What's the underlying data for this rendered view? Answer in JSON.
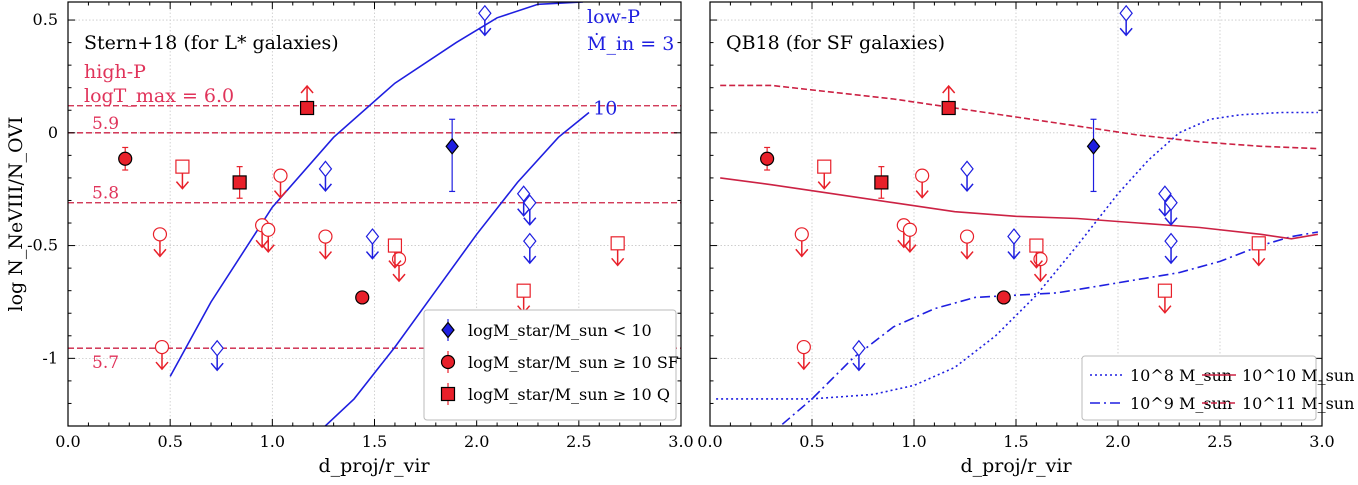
{
  "chart_data": [
    {
      "type": "scatter",
      "title": "Stern+18 (for L* galaxies)",
      "xlabel": "d_proj/r_vir",
      "ylabel": "log N_NeVIII/N_OVI",
      "xlim": [
        0.0,
        3.0
      ],
      "ylim": [
        -1.3,
        0.58
      ],
      "xticks": [
        "0.0",
        "0.5",
        "1.0",
        "1.5",
        "2.0",
        "2.5",
        "3.0"
      ],
      "yticks": [
        "0.5",
        "0",
        "-0.5",
        "-1"
      ],
      "grid": true,
      "legend_position": "lower-right",
      "annotations": {
        "high_p_label": "high-P",
        "tmax_label": "logT_max = 6.0",
        "low_p_label": "low-P",
        "min_label": "Ṁ_in = 3",
        "hlines": [
          {
            "y": 0.12,
            "label": ""
          },
          {
            "y": 0.0,
            "label": "5.9"
          },
          {
            "y": -0.31,
            "label": "5.8"
          },
          {
            "y": -0.955,
            "label": "5.7"
          }
        ],
        "curve10_label": "10"
      },
      "legend": [
        {
          "marker": "diamond",
          "label": "logM_star/M_sun < 10"
        },
        {
          "marker": "circle",
          "label": "logM_star/M_sun ≥ 10 SF"
        },
        {
          "marker": "square",
          "label": "logM_star/M_sun ≥ 10 Q"
        }
      ],
      "model_curves": [
        {
          "name": "Mdot_in = 3",
          "points": [
            [
              0.5,
              -1.08
            ],
            [
              0.7,
              -0.75
            ],
            [
              1.0,
              -0.33
            ],
            [
              1.3,
              -0.02
            ],
            [
              1.6,
              0.22
            ],
            [
              1.9,
              0.4
            ],
            [
              2.1,
              0.51
            ],
            [
              2.3,
              0.57
            ],
            [
              2.52,
              0.58
            ]
          ]
        },
        {
          "name": "Mdot_in = 10",
          "points": [
            [
              1.2,
              -1.35
            ],
            [
              1.4,
              -1.18
            ],
            [
              1.6,
              -0.95
            ],
            [
              1.8,
              -0.7
            ],
            [
              2.0,
              -0.45
            ],
            [
              2.2,
              -0.22
            ],
            [
              2.4,
              -0.02
            ],
            [
              2.55,
              0.09
            ]
          ]
        }
      ]
    },
    {
      "type": "scatter",
      "title": "QB18 (for SF galaxies)",
      "xlabel": "d_proj/r_vir",
      "xlim": [
        0.0,
        3.0
      ],
      "ylim": [
        -1.3,
        0.58
      ],
      "xticks": [
        "0.0",
        "0.5",
        "1.0",
        "1.5",
        "2.0",
        "2.5",
        "3.0"
      ],
      "grid": true,
      "legend_position": "lower-right",
      "legend": [
        {
          "style": "dotted",
          "color": "#1f1fe0",
          "label": "10^8 M_sun"
        },
        {
          "style": "dashdot",
          "color": "#1f1fe0",
          "label": "10^9 M_sun"
        },
        {
          "style": "solid",
          "color": "#cc2244",
          "label": "10^10 M_sun"
        },
        {
          "style": "dashed",
          "color": "#cc2244",
          "label": "10^11 M_sun"
        }
      ],
      "model_curves": [
        {
          "name": "10^8 M_sun",
          "points": [
            [
              0.03,
              -1.18
            ],
            [
              0.5,
              -1.18
            ],
            [
              0.8,
              -1.16
            ],
            [
              1.0,
              -1.12
            ],
            [
              1.2,
              -1.04
            ],
            [
              1.4,
              -0.9
            ],
            [
              1.6,
              -0.72
            ],
            [
              1.8,
              -0.5
            ],
            [
              2.0,
              -0.27
            ],
            [
              2.15,
              -0.12
            ],
            [
              2.3,
              0.0
            ],
            [
              2.45,
              0.06
            ],
            [
              2.6,
              0.08
            ],
            [
              2.8,
              0.09
            ],
            [
              2.98,
              0.09
            ]
          ]
        },
        {
          "name": "10^9 M_sun",
          "points": [
            [
              0.28,
              -1.35
            ],
            [
              0.5,
              -1.18
            ],
            [
              0.7,
              -1.0
            ],
            [
              0.9,
              -0.86
            ],
            [
              1.1,
              -0.78
            ],
            [
              1.3,
              -0.73
            ],
            [
              1.5,
              -0.72
            ],
            [
              1.7,
              -0.71
            ],
            [
              1.9,
              -0.68
            ],
            [
              2.1,
              -0.65
            ],
            [
              2.3,
              -0.62
            ],
            [
              2.5,
              -0.57
            ],
            [
              2.7,
              -0.5
            ],
            [
              2.85,
              -0.46
            ],
            [
              2.98,
              -0.44
            ]
          ]
        },
        {
          "name": "10^10 M_sun",
          "points": [
            [
              0.05,
              -0.2
            ],
            [
              0.3,
              -0.23
            ],
            [
              0.6,
              -0.27
            ],
            [
              0.9,
              -0.31
            ],
            [
              1.2,
              -0.35
            ],
            [
              1.5,
              -0.37
            ],
            [
              1.8,
              -0.38
            ],
            [
              2.1,
              -0.4
            ],
            [
              2.4,
              -0.42
            ],
            [
              2.7,
              -0.45
            ],
            [
              2.85,
              -0.47
            ],
            [
              2.98,
              -0.45
            ]
          ]
        },
        {
          "name": "10^11 M_sun",
          "points": [
            [
              0.05,
              0.21
            ],
            [
              0.3,
              0.21
            ],
            [
              0.6,
              0.18
            ],
            [
              0.9,
              0.15
            ],
            [
              1.2,
              0.11
            ],
            [
              1.5,
              0.07
            ],
            [
              1.8,
              0.03
            ],
            [
              2.1,
              -0.01
            ],
            [
              2.4,
              -0.04
            ],
            [
              2.7,
              -0.06
            ],
            [
              2.98,
              -0.07
            ]
          ]
        }
      ]
    }
  ],
  "observations": {
    "detections": [
      {
        "type": "diamond",
        "x": 1.88,
        "y": -0.06,
        "err_up": 0.12,
        "err_down": 0.2
      },
      {
        "type": "circle",
        "x": 0.28,
        "y": -0.115,
        "err_up": 0.05,
        "err_down": 0.05
      },
      {
        "type": "circle",
        "x": 1.44,
        "y": -0.73,
        "err_up": 0.0,
        "err_down": 0.0
      },
      {
        "type": "square",
        "x": 0.84,
        "y": -0.22,
        "err_up": 0.07,
        "err_down": 0.07
      }
    ],
    "lower_limits": [
      {
        "type": "square",
        "x": 1.17,
        "y": 0.11
      }
    ],
    "upper_limits": [
      {
        "type": "diamond",
        "x": 2.04,
        "y": 0.53
      },
      {
        "type": "diamond",
        "x": 1.26,
        "y": -0.16
      },
      {
        "type": "diamond",
        "x": 1.49,
        "y": -0.46
      },
      {
        "type": "diamond",
        "x": 2.23,
        "y": -0.27
      },
      {
        "type": "diamond",
        "x": 2.26,
        "y": -0.31
      },
      {
        "type": "diamond",
        "x": 2.26,
        "y": -0.48
      },
      {
        "type": "diamond",
        "x": 0.73,
        "y": -0.955
      },
      {
        "type": "circle",
        "x": 1.04,
        "y": -0.19
      },
      {
        "type": "circle",
        "x": 0.45,
        "y": -0.45
      },
      {
        "type": "circle",
        "x": 0.95,
        "y": -0.41
      },
      {
        "type": "circle",
        "x": 0.98,
        "y": -0.43
      },
      {
        "type": "circle",
        "x": 1.26,
        "y": -0.46
      },
      {
        "type": "circle",
        "x": 1.62,
        "y": -0.56
      },
      {
        "type": "circle",
        "x": 0.46,
        "y": -0.95
      },
      {
        "type": "square",
        "x": 0.56,
        "y": -0.15
      },
      {
        "type": "square",
        "x": 1.6,
        "y": -0.5
      },
      {
        "type": "square",
        "x": 2.23,
        "y": -0.7
      },
      {
        "type": "square",
        "x": 2.69,
        "y": -0.49
      }
    ]
  },
  "colors": {
    "blue": "#1f1fe0",
    "red": "#e8202a",
    "crimson": "#cc2244",
    "grid": "#c8c8c8"
  }
}
